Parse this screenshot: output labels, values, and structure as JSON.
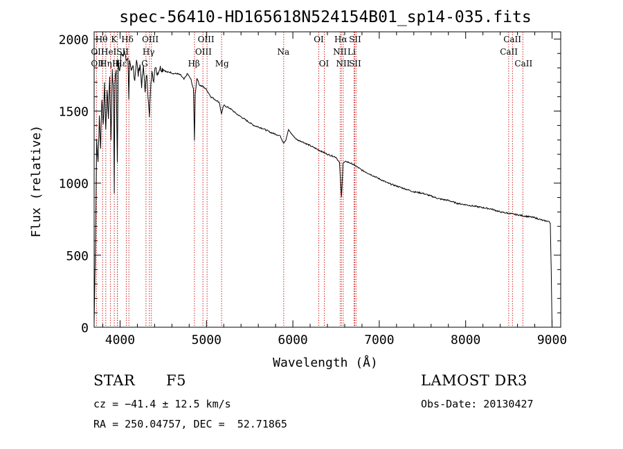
{
  "chart_data": {
    "type": "line",
    "title": "spec-56410-HD165618N524154B01_sp14-035.fits",
    "xlabel": "Wavelength (Å)",
    "ylabel": "Flux (relative)",
    "xlim": [
      3700,
      9100
    ],
    "ylim": [
      0,
      2050
    ],
    "xticks": [
      4000,
      5000,
      6000,
      7000,
      8000,
      9000
    ],
    "yticks": [
      0,
      500,
      1000,
      1500,
      2000
    ],
    "series": [
      {
        "name": "flux",
        "x": [
          3700,
          3715,
          3730,
          3745,
          3760,
          3775,
          3790,
          3805,
          3820,
          3835,
          3850,
          3865,
          3880,
          3895,
          3910,
          3925,
          3933,
          3940,
          3955,
          3968,
          3980,
          3995,
          4010,
          4030,
          4050,
          4070,
          4090,
          4101,
          4110,
          4130,
          4150,
          4170,
          4190,
          4210,
          4230,
          4250,
          4270,
          4290,
          4310,
          4330,
          4340,
          4350,
          4370,
          4390,
          4410,
          4430,
          4460,
          4500,
          4540,
          4580,
          4620,
          4660,
          4700,
          4740,
          4780,
          4820,
          4850,
          4861,
          4870,
          4890,
          4920,
          4960,
          5000,
          5050,
          5100,
          5150,
          5173,
          5200,
          5270,
          5350,
          5450,
          5550,
          5650,
          5750,
          5850,
          5893,
          5920,
          5950,
          6000,
          6050,
          6100,
          6200,
          6300,
          6400,
          6500,
          6540,
          6563,
          6580,
          6620,
          6700,
          6800,
          6900,
          7000,
          7100,
          7200,
          7300,
          7400,
          7500,
          7600,
          7700,
          7800,
          7900,
          8000,
          8100,
          8200,
          8300,
          8400,
          8500,
          8600,
          8700,
          8800,
          8900,
          8960,
          8980,
          8990,
          9000
        ],
        "y": [
          30,
          550,
          1300,
          1150,
          1450,
          1250,
          1600,
          1400,
          1700,
          1350,
          1650,
          1450,
          1750,
          1300,
          1800,
          1600,
          950,
          1700,
          1800,
          1150,
          1850,
          1780,
          1900,
          1870,
          1920,
          1850,
          1880,
          1600,
          1840,
          1760,
          1810,
          1720,
          1860,
          1750,
          1830,
          1680,
          1800,
          1650,
          1760,
          1540,
          1450,
          1620,
          1800,
          1700,
          1820,
          1760,
          1800,
          1790,
          1770,
          1770,
          1760,
          1760,
          1750,
          1720,
          1760,
          1720,
          1650,
          1300,
          1620,
          1730,
          1680,
          1670,
          1650,
          1600,
          1580,
          1560,
          1480,
          1540,
          1520,
          1480,
          1440,
          1400,
          1380,
          1350,
          1330,
          1280,
          1300,
          1370,
          1330,
          1300,
          1290,
          1260,
          1230,
          1200,
          1180,
          1140,
          900,
          1140,
          1150,
          1130,
          1090,
          1060,
          1030,
          1000,
          980,
          960,
          940,
          930,
          910,
          890,
          880,
          860,
          850,
          840,
          830,
          820,
          800,
          790,
          780,
          770,
          760,
          740,
          735,
          720,
          400,
          0
        ]
      }
    ],
    "lines": [
      {
        "name": "Hθ",
        "wavelength": 3798
      },
      {
        "name": "OII",
        "wavelength": 3727
      },
      {
        "name": "Hη",
        "wavelength": 3835
      },
      {
        "name": "HeI",
        "wavelength": 3889
      },
      {
        "name": "K",
        "wavelength": 3933
      },
      {
        "name": "H",
        "wavelength": 3968
      },
      {
        "name": "Hε",
        "wavelength": 3970
      },
      {
        "name": "SII",
        "wavelength": 4072
      },
      {
        "name": "Hδ",
        "wavelength": 4102
      },
      {
        "name": "G",
        "wavelength": 4300
      },
      {
        "name": "Hγ",
        "wavelength": 4340
      },
      {
        "name": "OIII",
        "wavelength": 4363
      },
      {
        "name": "Hβ",
        "wavelength": 4861
      },
      {
        "name": "OIII",
        "wavelength": 4959
      },
      {
        "name": "OIII",
        "wavelength": 5007
      },
      {
        "name": "Mg",
        "wavelength": 5175
      },
      {
        "name": "Na",
        "wavelength": 5894
      },
      {
        "name": "OI",
        "wavelength": 6300
      },
      {
        "name": "OI",
        "wavelength": 6364
      },
      {
        "name": "NII",
        "wavelength": 6548
      },
      {
        "name": "Hα",
        "wavelength": 6563
      },
      {
        "name": "NII",
        "wavelength": 6583
      },
      {
        "name": "Li",
        "wavelength": 6708
      },
      {
        "name": "SII",
        "wavelength": 6716
      },
      {
        "name": "SII",
        "wavelength": 6731
      },
      {
        "name": "CaII",
        "wavelength": 8498
      },
      {
        "name": "CaII",
        "wavelength": 8542
      },
      {
        "name": "CaII",
        "wavelength": 8662
      }
    ],
    "line_labels": [
      {
        "text": "Hθ",
        "at": 3785,
        "row": 0
      },
      {
        "text": "K",
        "at": 3930,
        "row": 0
      },
      {
        "text": "Hδ",
        "at": 4085,
        "row": 0
      },
      {
        "text": "OIII",
        "at": 4350,
        "row": 0
      },
      {
        "text": "OIII",
        "at": 4995,
        "row": 0
      },
      {
        "text": "OI",
        "at": 6300,
        "row": 0
      },
      {
        "text": "Hα",
        "at": 6555,
        "row": 0
      },
      {
        "text": "SII",
        "at": 6720,
        "row": 0
      },
      {
        "text": "CaII",
        "at": 8540,
        "row": 0
      },
      {
        "text": "OII",
        "at": 3740,
        "row": 1
      },
      {
        "text": "HeI",
        "at": 3870,
        "row": 1
      },
      {
        "text": "SII",
        "at": 4030,
        "row": 1
      },
      {
        "text": "Hγ",
        "at": 4330,
        "row": 1
      },
      {
        "text": "OIII",
        "at": 4965,
        "row": 1
      },
      {
        "text": "Na",
        "at": 5890,
        "row": 1
      },
      {
        "text": "NII",
        "at": 6545,
        "row": 1
      },
      {
        "text": "Li",
        "at": 6680,
        "row": 1
      },
      {
        "text": "CaII",
        "at": 8500,
        "row": 1
      },
      {
        "text": "OII",
        "at": 3740,
        "row": 2
      },
      {
        "text": "Hη",
        "at": 3835,
        "row": 2
      },
      {
        "text": "H",
        "at": 3950,
        "row": 2
      },
      {
        "text": "Hε",
        "at": 4010,
        "row": 2
      },
      {
        "text": "G",
        "at": 4285,
        "row": 2
      },
      {
        "text": "Hβ",
        "at": 4855,
        "row": 2
      },
      {
        "text": "Mg",
        "at": 5180,
        "row": 2
      },
      {
        "text": "OI",
        "at": 6360,
        "row": 2
      },
      {
        "text": "NII",
        "at": 6580,
        "row": 2
      },
      {
        "text": "SII",
        "at": 6720,
        "row": 2
      },
      {
        "text": "CaII",
        "at": 8670,
        "row": 2
      }
    ],
    "colors": {
      "spectrum": "#000000",
      "lines": "#cc2222",
      "axes": "#000000"
    }
  },
  "info": {
    "object_type": "STAR",
    "subclass": "F5",
    "survey": "LAMOST DR3",
    "cz": "cz = −41.4 ± 12.5 km/s",
    "obs_date": "Obs-Date: 20130427",
    "coords": "RA = 250.04757, DEC =  52.71865"
  }
}
